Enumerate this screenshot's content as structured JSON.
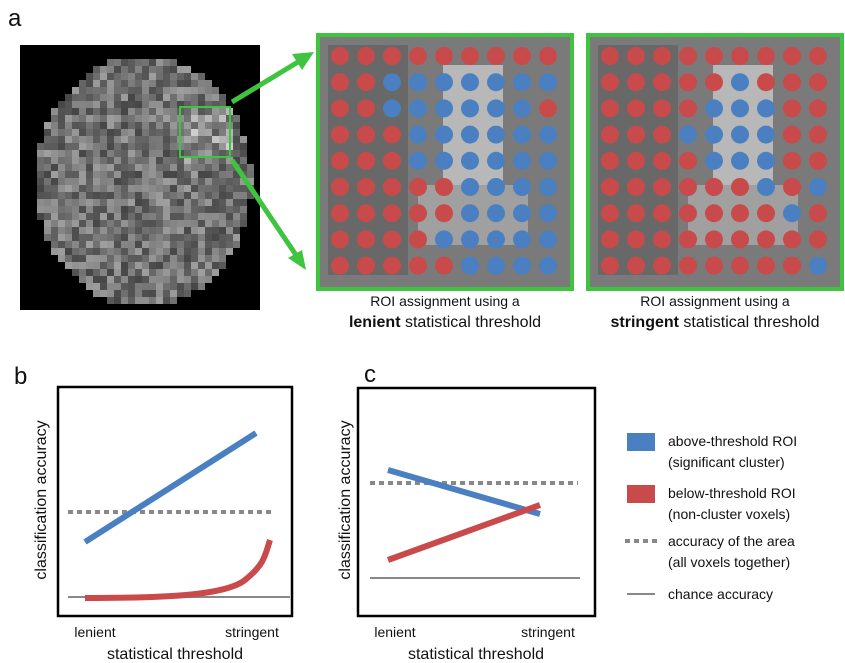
{
  "panel_a": {
    "label": "a",
    "lenient": {
      "caption_line1": "ROI assignment using a",
      "caption_bold": "lenient",
      "caption_rest": " statistical threshold"
    },
    "stringent": {
      "caption_line1": "ROI assignment using a",
      "caption_bold": "stringent",
      "caption_rest": " statistical threshold"
    }
  },
  "panel_b": {
    "label": "b",
    "y_label": "classification accuracy",
    "x_label": "statistical threshold",
    "x_ticks": [
      "lenient",
      "stringent"
    ]
  },
  "panel_c": {
    "label": "c",
    "y_label": "classification accuracy",
    "x_label": "statistical threshold",
    "x_ticks": [
      "lenient",
      "stringent"
    ]
  },
  "legend": [
    {
      "line1": "above-threshold ROI",
      "line2": "(significant cluster)"
    },
    {
      "line1": "below-threshold ROI",
      "line2": "(non-cluster voxels)"
    },
    {
      "line1": "accuracy of the area",
      "line2": "(all voxels together)"
    },
    {
      "line1": "chance accuracy"
    }
  ]
}
